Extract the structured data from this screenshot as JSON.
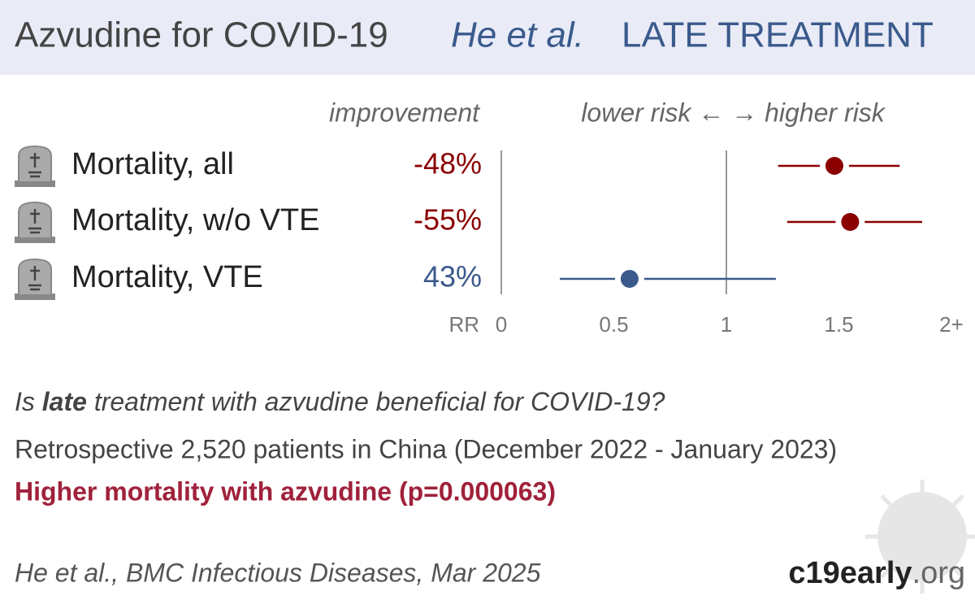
{
  "header": {
    "title": "Azvudine for COVID-19",
    "study": "He et al.",
    "stage": "LATE TREATMENT"
  },
  "chart_data": {
    "type": "forest",
    "column_label": "improvement",
    "direction_label": "lower risk ← → higher risk",
    "x_label": "RR",
    "categories": [
      "Mortality, all",
      "Mortality, w/o VTE",
      "Mortality, VTE"
    ],
    "values": [
      -48,
      -55,
      43
    ],
    "value_labels": [
      "-48%",
      "-55%",
      "43%"
    ],
    "rr": [
      1.48,
      1.55,
      0.57
    ],
    "ci_low": [
      1.23,
      1.27,
      0.26
    ],
    "ci_high": [
      1.77,
      1.87,
      1.22
    ],
    "colors": [
      "#8b0000",
      "#8b0000",
      "#3a5a8c"
    ],
    "xlim": [
      0,
      2
    ],
    "xticks": [
      0,
      0.5,
      1,
      1.5,
      {
        "value": 2,
        "label": "2+"
      }
    ],
    "reference_line": 1
  },
  "footer": {
    "question": [
      "Is ",
      "late",
      " treatment with azvudine beneficial for COVID-19?"
    ],
    "summary": "Retrospective 2,520 patients in China (December 2022 - January 2023)",
    "conclusion": "Higher mortality with azvudine (p=0.000063)",
    "citation": "He et al., BMC Infectious Diseases, Mar 2025",
    "brand": [
      "c19early",
      ".org"
    ]
  }
}
